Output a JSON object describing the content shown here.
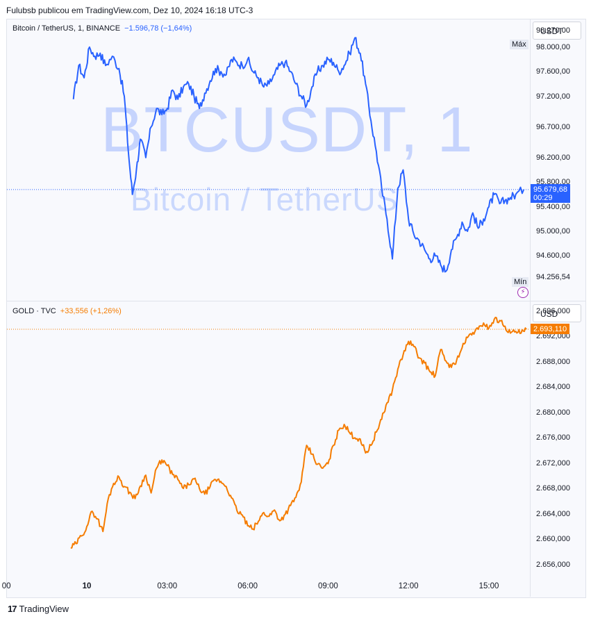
{
  "header": {
    "text": "Fulubsb publicou em TradingView.com, Dez 10, 2024 16:18 UTC-3"
  },
  "footer": {
    "logo_glyph": "17",
    "brand": "TradingView"
  },
  "chart_data": [
    {
      "type": "line",
      "legend": {
        "symbol": "Bitcoin / TetherUS, 1, BINANCE",
        "change": "−1.596,78 (−1,64%)"
      },
      "watermark": {
        "main": "BTCUSDT, 1",
        "sub": "Bitcoin / TetherUS"
      },
      "currency_label": "USDT",
      "y_ticks": [
        "98.270,00",
        "98.000,00",
        "97.600,00",
        "97.200,00",
        "96.700,00",
        "96.200,00",
        "95.800,00",
        "95.400,00",
        "95.000,00",
        "94.600,00",
        "94.256,54"
      ],
      "y_tick_values": [
        98270,
        98000,
        97600,
        97200,
        96700,
        96200,
        95800,
        95400,
        95000,
        94600,
        94256.54
      ],
      "ylim": [
        93880,
        98450
      ],
      "max_label": "Máx",
      "min_label": "Mín",
      "last_price": {
        "value": 95679.68,
        "label": "95.679,68",
        "countdown": "00:29"
      },
      "color": "#2962ff",
      "x_hours": [
        -0.5,
        -0.3,
        -0.1,
        0.1,
        0.3,
        0.5,
        0.7,
        0.95,
        1.2,
        1.4,
        1.55,
        1.7,
        1.85,
        2.0,
        2.2,
        2.4,
        2.6,
        2.8,
        3.0,
        3.2,
        3.4,
        3.6,
        3.8,
        4.0,
        4.2,
        4.4,
        4.6,
        4.8,
        5.0,
        5.2,
        5.4,
        5.6,
        5.8,
        6.0,
        6.2,
        6.4,
        6.6,
        6.8,
        7.0,
        7.2,
        7.4,
        7.6,
        7.8,
        8.0,
        8.2,
        8.4,
        8.6,
        8.8,
        9.0,
        9.2,
        9.4,
        9.6,
        9.8,
        10.0,
        10.2,
        10.4,
        10.6,
        10.8,
        11.0,
        11.2,
        11.4,
        11.6,
        11.8,
        12.0,
        12.2,
        12.4,
        12.6,
        12.8,
        13.0,
        13.2,
        13.4,
        13.6,
        13.8,
        14.0,
        14.2,
        14.4,
        14.6,
        14.8,
        15.0,
        15.2,
        15.4,
        15.6,
        15.8,
        16.0,
        16.3
      ],
      "values": [
        97150,
        97700,
        97500,
        98000,
        97850,
        97900,
        97700,
        97850,
        97650,
        97200,
        96300,
        95600,
        96000,
        96500,
        96200,
        96700,
        97000,
        96900,
        97000,
        97300,
        97150,
        97350,
        97400,
        97200,
        97000,
        97250,
        97450,
        97650,
        97600,
        97550,
        97800,
        97750,
        97700,
        97800,
        97600,
        97500,
        97350,
        97400,
        97550,
        97700,
        97750,
        97600,
        97400,
        97200,
        97050,
        97350,
        97600,
        97700,
        97800,
        97750,
        97600,
        97700,
        97900,
        98150,
        97900,
        97400,
        96800,
        96300,
        95700,
        95200,
        94550,
        95700,
        96000,
        95200,
        94950,
        94850,
        94700,
        94550,
        94600,
        94450,
        94350,
        94700,
        94900,
        95150,
        95000,
        95300,
        95050,
        95200,
        95400,
        95600,
        95450,
        95500,
        95550,
        95600,
        95680
      ]
    },
    {
      "type": "line",
      "legend": {
        "symbol": "GOLD · TVC",
        "change": "+33,556 (+1,26%)"
      },
      "currency_label": "USD",
      "y_ticks": [
        "2.696,000",
        "2.692,000",
        "2.688,000",
        "2.684,000",
        "2.680,000",
        "2.676,000",
        "2.672,000",
        "2.668,000",
        "2.664,000",
        "2.660,000",
        "2.656,000"
      ],
      "y_tick_values": [
        2696,
        2692,
        2688,
        2684,
        2680,
        2676,
        2672,
        2668,
        2664,
        2660,
        2656
      ],
      "ylim": [
        2654.1,
        2697.5
      ],
      "last_price": {
        "value": 2693.11,
        "label": "2.693,110"
      },
      "color": "#f57c00",
      "x_hours": [
        -0.6,
        -0.4,
        -0.2,
        0.0,
        0.2,
        0.4,
        0.6,
        0.8,
        1.0,
        1.2,
        1.4,
        1.6,
        1.8,
        2.0,
        2.2,
        2.4,
        2.6,
        2.8,
        3.0,
        3.2,
        3.4,
        3.6,
        3.8,
        4.0,
        4.2,
        4.4,
        4.6,
        4.8,
        5.0,
        5.2,
        5.4,
        5.6,
        5.8,
        6.0,
        6.2,
        6.4,
        6.6,
        6.8,
        7.0,
        7.2,
        7.4,
        7.6,
        7.8,
        8.0,
        8.2,
        8.4,
        8.6,
        8.8,
        9.0,
        9.2,
        9.4,
        9.6,
        9.8,
        10.0,
        10.2,
        10.4,
        10.6,
        10.8,
        11.0,
        11.2,
        11.4,
        11.6,
        11.8,
        12.0,
        12.2,
        12.4,
        12.6,
        12.8,
        13.0,
        13.2,
        13.4,
        13.6,
        13.8,
        14.0,
        14.2,
        14.4,
        14.6,
        14.8,
        15.0,
        15.2,
        15.4,
        15.6,
        15.8,
        16.0,
        16.2,
        16.4
      ],
      "values": [
        2658.6,
        2659.3,
        2660.5,
        2662.0,
        2664.4,
        2663.2,
        2661.2,
        2666.4,
        2668.8,
        2669.8,
        2668.3,
        2667.4,
        2666.4,
        2668.4,
        2670.1,
        2667.3,
        2671.2,
        2672.5,
        2671.6,
        2670.2,
        2669.4,
        2668.0,
        2668.6,
        2669.5,
        2668.0,
        2667.1,
        2668.3,
        2669.4,
        2669.1,
        2668.3,
        2666.5,
        2664.5,
        2663.8,
        2662.1,
        2661.6,
        2662.8,
        2664.2,
        2663.6,
        2664.6,
        2662.9,
        2663.9,
        2665.3,
        2666.6,
        2669.0,
        2674.8,
        2673.4,
        2671.8,
        2671.2,
        2671.9,
        2674.8,
        2677.2,
        2678.1,
        2676.8,
        2676.0,
        2675.8,
        2673.6,
        2674.8,
        2676.9,
        2678.9,
        2681.5,
        2683.5,
        2686.8,
        2689.1,
        2691.2,
        2690.4,
        2688.6,
        2687.8,
        2686.4,
        2685.8,
        2689.9,
        2688.1,
        2687.1,
        2688.3,
        2690.2,
        2691.8,
        2692.6,
        2693.1,
        2694.1,
        2693.3,
        2694.7,
        2694.5,
        2693.6,
        2692.5,
        2692.8,
        2692.5,
        2693.11
      ]
    }
  ],
  "x_axis": {
    "ticks": [
      "00",
      "10",
      "03:00",
      "06:00",
      "09:00",
      "12:00",
      "15:00"
    ],
    "tick_hours": [
      -3,
      0,
      3,
      6,
      9,
      12,
      15
    ]
  }
}
